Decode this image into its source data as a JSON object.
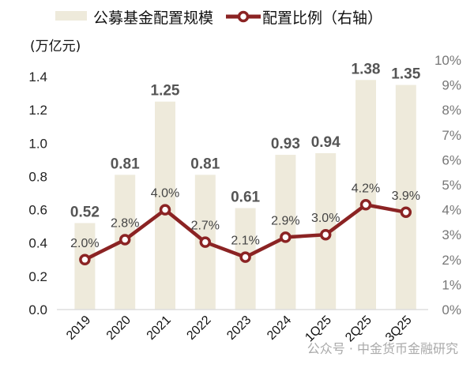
{
  "chart_data": {
    "type": "bar+line",
    "categories": [
      "2019",
      "2020",
      "2021",
      "2022",
      "2023",
      "2024",
      "1Q25",
      "2Q25",
      "3Q25"
    ],
    "series": [
      {
        "name": "公募基金配置规模",
        "type": "bar",
        "axis": "left",
        "values": [
          0.52,
          0.81,
          1.25,
          0.81,
          0.61,
          0.93,
          0.94,
          1.38,
          1.35
        ],
        "labels": [
          "0.52",
          "0.81",
          "1.25",
          "0.81",
          "0.61",
          "0.93",
          "0.94",
          "1.38",
          "1.35"
        ],
        "color": "#eeeadb"
      },
      {
        "name": "配置比例（右轴）",
        "type": "line",
        "axis": "right",
        "values": [
          2.0,
          2.8,
          4.0,
          2.7,
          2.1,
          2.9,
          3.0,
          4.2,
          3.9
        ],
        "labels": [
          "2.0%",
          "2.8%",
          "4.0%",
          "2.7%",
          "2.1%",
          "2.9%",
          "3.0%",
          "4.2%",
          "3.9%"
        ],
        "color": "#8b2323"
      }
    ],
    "ylabel": "(万亿元)",
    "ylim": [
      0,
      1.5
    ],
    "yticks": [
      "0.0",
      "0.2",
      "0.4",
      "0.6",
      "0.8",
      "1.0",
      "1.2",
      "1.4"
    ],
    "y2lim": [
      0,
      10
    ],
    "y2ticks": [
      "0%",
      "1%",
      "2%",
      "3%",
      "4%",
      "5%",
      "6%",
      "7%",
      "8%",
      "9%",
      "10%"
    ],
    "legend_placement": "top",
    "grid": false
  },
  "watermark": "公众号 · 中金货币金融研究"
}
